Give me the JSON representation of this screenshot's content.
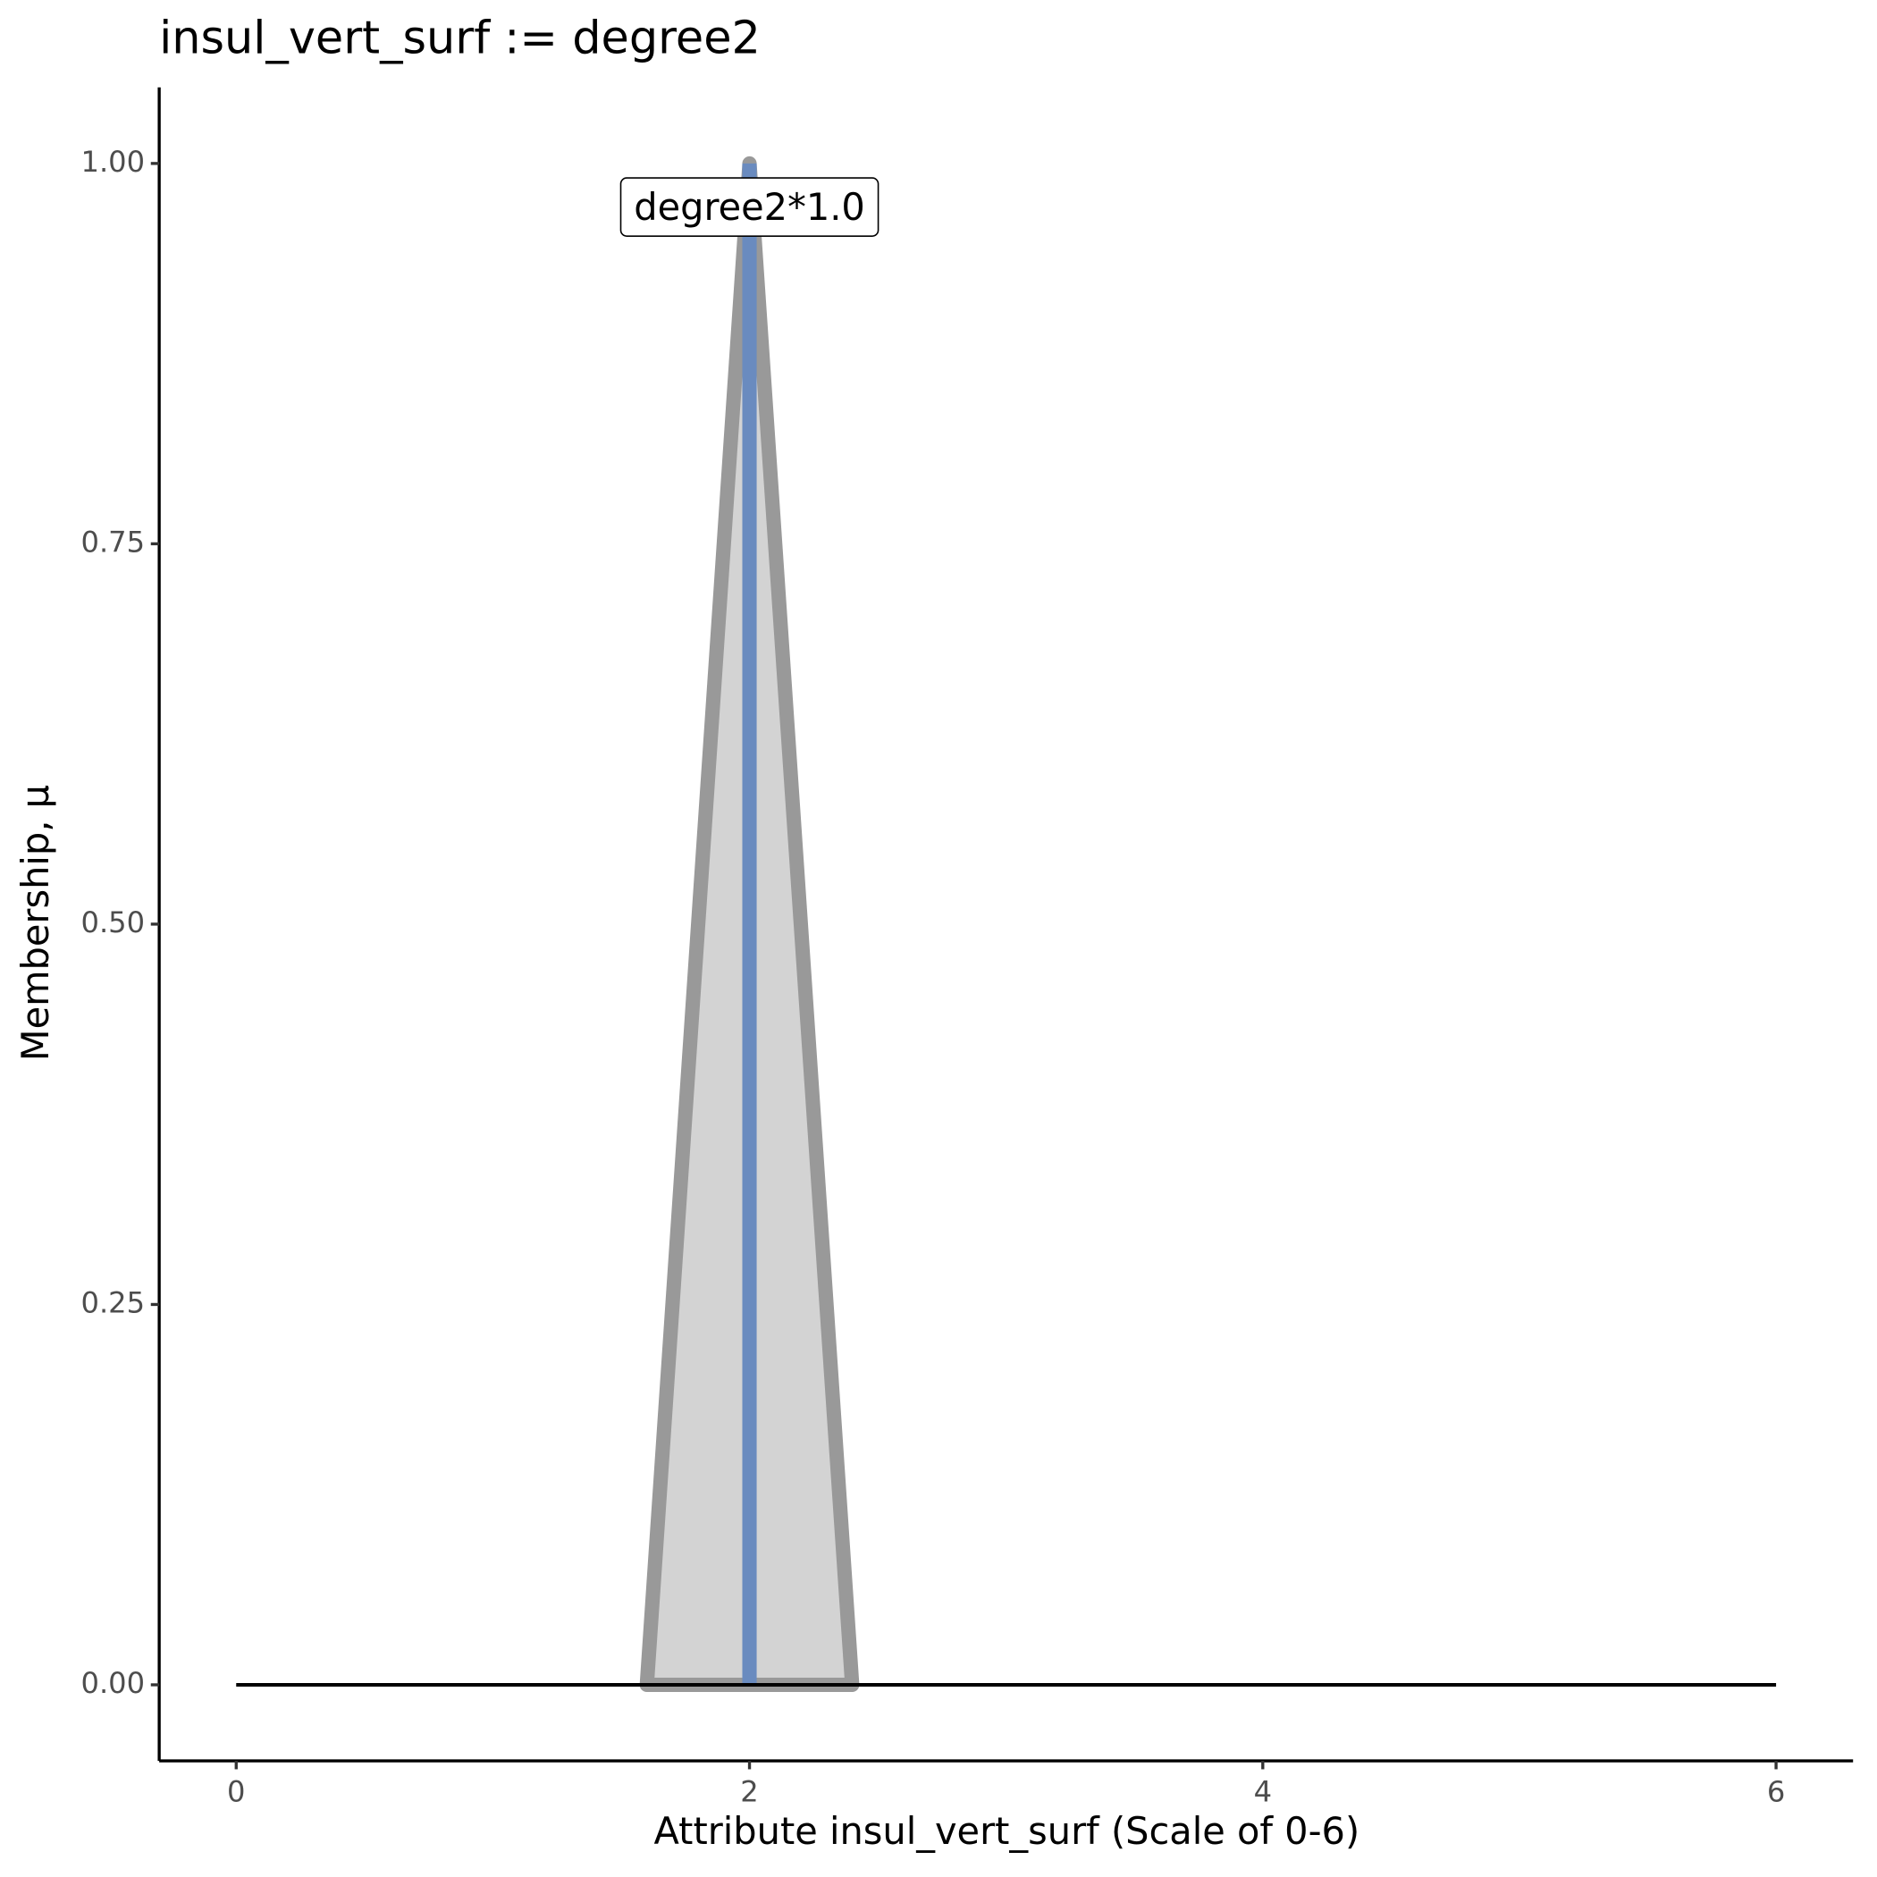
{
  "chart_data": {
    "type": "line",
    "title": "insul_vert_surf := degree2",
    "x_label": "Attribute insul_vert_surf (Scale of 0-6)",
    "y_label": "Membership, μ",
    "series": [
      {
        "color": "#999999",
        "fill": "#d3d3d3",
        "x": [
          1.6,
          2,
          2.4
        ],
        "values": [
          0,
          1,
          0
        ]
      },
      {
        "color": "#6a8bbf",
        "x": [
          2,
          2
        ],
        "values": [
          0,
          1
        ]
      },
      {
        "color": "#000000",
        "x": [
          0,
          6
        ],
        "values": [
          0,
          0
        ]
      }
    ],
    "annotation": "degree2*1.0",
    "xlim": [
      -0.3,
      6.3
    ],
    "ylim": [
      -0.05,
      1.05
    ],
    "xticks": [
      0,
      2,
      4,
      6
    ],
    "yticks": [
      {
        "value": 0,
        "label": "0.00"
      },
      {
        "value": 0.25,
        "label": "0.25"
      },
      {
        "value": 0.5,
        "label": "0.50"
      },
      {
        "value": 0.75,
        "label": "0.75"
      },
      {
        "value": 1,
        "label": "1.00"
      }
    ]
  }
}
